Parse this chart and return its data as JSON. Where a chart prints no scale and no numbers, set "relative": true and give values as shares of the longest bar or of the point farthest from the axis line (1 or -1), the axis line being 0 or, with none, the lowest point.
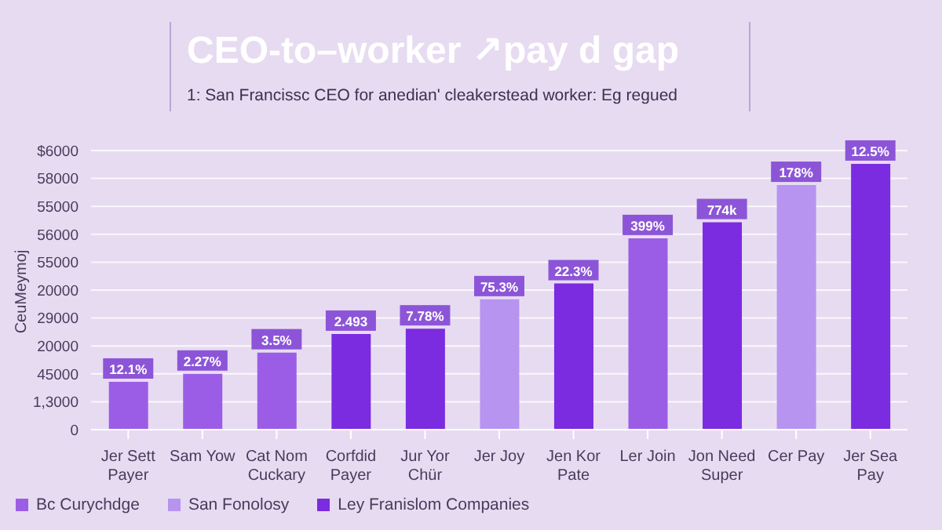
{
  "chart_data": {
    "type": "bar",
    "title": "CEO-to–worker ↗pay d gap",
    "subtitle": "1: San Francissc CEO for anedian' cleakerstead worker: Eg regued",
    "ylabel": "CeuMeymoj",
    "categories": [
      "Jer Sett Payer",
      "Sam Yow",
      "Cat Nom Cuckary",
      "Corfdid Payer",
      "Jur Yor Chür",
      "Jer Joy",
      "Jen Kor Pate",
      "Ler Join",
      "Jon Need Super",
      "Cer Pay",
      "Jer Sea Pay"
    ],
    "stacked": true,
    "relative": true,
    "series": [
      {
        "name": "Bc Curychdge",
        "color": "#9b5de5",
        "values": [
          0.18,
          0.21,
          0.29,
          null,
          null,
          null,
          null,
          0.72,
          null,
          null,
          null
        ]
      },
      {
        "name": "San Fonolosy",
        "color": "#b794f0",
        "values": [
          null,
          null,
          null,
          null,
          null,
          0.49,
          null,
          null,
          null,
          0.92,
          null
        ]
      },
      {
        "name": "Ley Franislom Companies",
        "color": "#7b2be0",
        "values": [
          null,
          null,
          null,
          0.36,
          0.38,
          null,
          0.55,
          null,
          0.78,
          null,
          1
        ]
      }
    ],
    "annotations": [
      "0",
      "1,3000",
      "45000",
      "20000",
      "29000",
      "20000",
      "55000",
      "56000",
      "55000",
      "58000",
      "$6000",
      {
        "text": "12.1%",
        "x": "Jer Sett Payer",
        "y": 0.18
      },
      {
        "text": "2.27%",
        "x": "Sam Yow",
        "y": 0.21
      },
      {
        "text": "3.5%",
        "x": "Cat Nom Cuckary",
        "y": 0.29
      },
      {
        "text": "2.493",
        "x": "Corfdid Payer",
        "y": 0.36
      },
      {
        "text": "7.78%",
        "x": "Jur Yor Chür",
        "y": 0.38
      },
      {
        "text": "75.3%",
        "x": "Jer Joy",
        "y": 0.49
      },
      {
        "text": "22.3%",
        "x": "Jen Kor Pate",
        "y": 0.55
      },
      {
        "text": "399%",
        "x": "Ler Join",
        "y": 0.72
      },
      {
        "text": "774k",
        "x": "Jon Need Super",
        "y": 0.78
      },
      {
        "text": "178%",
        "x": "Cer Pay",
        "y": 0.92
      },
      {
        "text": "12.5%",
        "x": "Jer Sea Pay",
        "y": 1
      }
    ],
    "grid": "y",
    "legend": "bottom left"
  }
}
